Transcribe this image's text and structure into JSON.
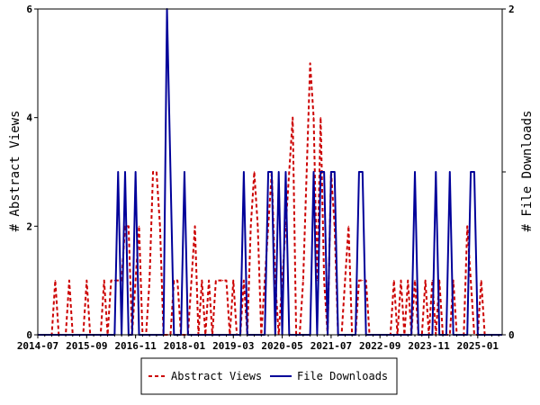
{
  "chart_data": {
    "type": "line",
    "title": "",
    "ylabel_left": "# Abstract Views",
    "ylabel_right": "# File Downloads",
    "ylim_left": [
      0,
      6
    ],
    "ylim_right": [
      0,
      2
    ],
    "yticks_left": [
      "0",
      "2",
      "4",
      "6"
    ],
    "yticks_right": [
      "0",
      "1",
      "2"
    ],
    "xlim": [
      "2014-07",
      "2025-08"
    ],
    "xticks": [
      "2014-07",
      "2015-09",
      "2016-11",
      "2018-01",
      "2019-03",
      "2020-05",
      "2021-07",
      "2022-09",
      "2023-11",
      "2025-01"
    ],
    "legend_position": "bottom-center",
    "series": [
      {
        "name": "Abstract Views",
        "axis": "left",
        "color": "#cc0000",
        "style": "dashed",
        "x": [
          "2014-07",
          "2014-08",
          "2014-09",
          "2014-10",
          "2014-11",
          "2014-12",
          "2015-01",
          "2015-02",
          "2015-03",
          "2015-04",
          "2015-05",
          "2015-06",
          "2015-07",
          "2015-08",
          "2015-09",
          "2015-10",
          "2015-11",
          "2015-12",
          "2016-01",
          "2016-02",
          "2016-03",
          "2016-04",
          "2016-05",
          "2016-06",
          "2016-07",
          "2016-08",
          "2016-09",
          "2016-10",
          "2016-11",
          "2016-12",
          "2017-01",
          "2017-02",
          "2017-03",
          "2017-04",
          "2017-05",
          "2017-06",
          "2017-07",
          "2017-08",
          "2017-09",
          "2017-10",
          "2017-11",
          "2017-12",
          "2018-01",
          "2018-02",
          "2018-03",
          "2018-04",
          "2018-05",
          "2018-06",
          "2018-07",
          "2018-08",
          "2018-09",
          "2018-10",
          "2018-11",
          "2018-12",
          "2019-01",
          "2019-02",
          "2019-03",
          "2019-04",
          "2019-05",
          "2019-06",
          "2019-07",
          "2019-08",
          "2019-09",
          "2019-10",
          "2019-11",
          "2019-12",
          "2020-01",
          "2020-02",
          "2020-03",
          "2020-04",
          "2020-05",
          "2020-06",
          "2020-07",
          "2020-08",
          "2020-09",
          "2020-10",
          "2020-11",
          "2020-12",
          "2021-01",
          "2021-02",
          "2021-03",
          "2021-04",
          "2021-05",
          "2021-06",
          "2021-07",
          "2021-08",
          "2021-09",
          "2021-10",
          "2021-11",
          "2021-12",
          "2022-01",
          "2022-02",
          "2022-03",
          "2022-04",
          "2022-05",
          "2022-06",
          "2022-07",
          "2022-08",
          "2022-09",
          "2022-10",
          "2022-11",
          "2022-12",
          "2023-01",
          "2023-02",
          "2023-03",
          "2023-04",
          "2023-05",
          "2023-06",
          "2023-07",
          "2023-08",
          "2023-09",
          "2023-10",
          "2023-11",
          "2023-12",
          "2024-01",
          "2024-02",
          "2024-03",
          "2024-04",
          "2024-05",
          "2024-06",
          "2024-07",
          "2024-08",
          "2024-09",
          "2024-10",
          "2024-11",
          "2024-12",
          "2025-01",
          "2025-02",
          "2025-03",
          "2025-04",
          "2025-05",
          "2025-06",
          "2025-07",
          "2025-08"
        ],
        "values": [
          0,
          0,
          0,
          0,
          0,
          1,
          0,
          0,
          0,
          1,
          0,
          0,
          0,
          0,
          1,
          0,
          0,
          0,
          0,
          1,
          0,
          1,
          1,
          1,
          1,
          2,
          2,
          0,
          1,
          2,
          0,
          0,
          1,
          3,
          3,
          2,
          0,
          0,
          0,
          1,
          1,
          0,
          0,
          0,
          1,
          2,
          0,
          1,
          0,
          1,
          0,
          1,
          1,
          1,
          1,
          0,
          1,
          0,
          0,
          1,
          0,
          2,
          3,
          2,
          0,
          1,
          2,
          3,
          1,
          0,
          1,
          2,
          3,
          4,
          0,
          0,
          1,
          3,
          5,
          4,
          1,
          4,
          1,
          0,
          3,
          2,
          0,
          0,
          1,
          2,
          0,
          0,
          1,
          1,
          1,
          0,
          0,
          0,
          0,
          0,
          0,
          0,
          1,
          0,
          1,
          0,
          1,
          0,
          1,
          0,
          0,
          1,
          0,
          1,
          0,
          1,
          0,
          0,
          0,
          1,
          0,
          0,
          0,
          2,
          1,
          0,
          0,
          1,
          0,
          0,
          0,
          0,
          0,
          0
        ]
      },
      {
        "name": "File Downloads",
        "axis": "right",
        "color": "#000099",
        "style": "solid",
        "x": [
          "2014-07",
          "2014-08",
          "2014-09",
          "2014-10",
          "2014-11",
          "2014-12",
          "2015-01",
          "2015-02",
          "2015-03",
          "2015-04",
          "2015-05",
          "2015-06",
          "2015-07",
          "2015-08",
          "2015-09",
          "2015-10",
          "2015-11",
          "2015-12",
          "2016-01",
          "2016-02",
          "2016-03",
          "2016-04",
          "2016-05",
          "2016-06",
          "2016-07",
          "2016-08",
          "2016-09",
          "2016-10",
          "2016-11",
          "2016-12",
          "2017-01",
          "2017-02",
          "2017-03",
          "2017-04",
          "2017-05",
          "2017-06",
          "2017-07",
          "2017-08",
          "2017-09",
          "2017-10",
          "2017-11",
          "2017-12",
          "2018-01",
          "2018-02",
          "2018-03",
          "2018-04",
          "2018-05",
          "2018-06",
          "2018-07",
          "2018-08",
          "2018-09",
          "2018-10",
          "2018-11",
          "2018-12",
          "2019-01",
          "2019-02",
          "2019-03",
          "2019-04",
          "2019-05",
          "2019-06",
          "2019-07",
          "2019-08",
          "2019-09",
          "2019-10",
          "2019-11",
          "2019-12",
          "2020-01",
          "2020-02",
          "2020-03",
          "2020-04",
          "2020-05",
          "2020-06",
          "2020-07",
          "2020-08",
          "2020-09",
          "2020-10",
          "2020-11",
          "2020-12",
          "2021-01",
          "2021-02",
          "2021-03",
          "2021-04",
          "2021-05",
          "2021-06",
          "2021-07",
          "2021-08",
          "2021-09",
          "2021-10",
          "2021-11",
          "2021-12",
          "2022-01",
          "2022-02",
          "2022-03",
          "2022-04",
          "2022-05",
          "2022-06",
          "2022-07",
          "2022-08",
          "2022-09",
          "2022-10",
          "2022-11",
          "2022-12",
          "2023-01",
          "2023-02",
          "2023-03",
          "2023-04",
          "2023-05",
          "2023-06",
          "2023-07",
          "2023-08",
          "2023-09",
          "2023-10",
          "2023-11",
          "2023-12",
          "2024-01",
          "2024-02",
          "2024-03",
          "2024-04",
          "2024-05",
          "2024-06",
          "2024-07",
          "2024-08",
          "2024-09",
          "2024-10",
          "2024-11",
          "2024-12",
          "2025-01",
          "2025-02",
          "2025-03",
          "2025-04",
          "2025-05",
          "2025-06",
          "2025-07",
          "2025-08"
        ],
        "values": [
          0,
          0,
          0,
          0,
          0,
          0,
          0,
          0,
          0,
          0,
          0,
          0,
          0,
          0,
          0,
          0,
          0,
          0,
          0,
          0,
          0,
          0,
          0,
          1,
          0,
          1,
          0,
          0,
          1,
          0,
          0,
          0,
          0,
          0,
          0,
          0,
          0,
          2,
          1,
          0,
          0,
          0,
          1,
          0,
          0,
          0,
          0,
          0,
          0,
          0,
          0,
          0,
          0,
          0,
          0,
          0,
          0,
          0,
          0,
          1,
          0,
          0,
          0,
          0,
          0,
          0,
          1,
          1,
          0,
          1,
          0,
          1,
          0,
          0,
          0,
          0,
          0,
          0,
          0,
          1,
          0,
          1,
          1,
          0,
          1,
          1,
          0,
          0,
          0,
          0,
          0,
          0,
          1,
          1,
          0,
          0,
          0,
          0,
          0,
          0,
          0,
          0,
          0,
          0,
          0,
          0,
          0,
          0,
          1,
          0,
          0,
          0,
          0,
          0,
          1,
          0,
          0,
          0,
          1,
          0,
          0,
          0,
          0,
          0,
          1,
          1,
          0,
          0,
          0,
          0,
          0,
          0,
          0,
          0
        ]
      }
    ]
  }
}
